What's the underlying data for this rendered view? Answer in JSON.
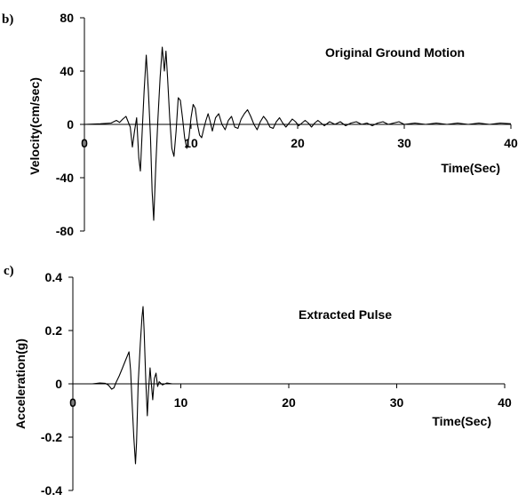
{
  "chart_data": [
    {
      "type": "line",
      "panel_label": "b)",
      "title": "Original Ground Motion",
      "xlabel": "Time(Sec)",
      "ylabel": "Velocity(cm/sec)",
      "xlim": [
        0,
        40
      ],
      "ylim": [
        -80,
        80
      ],
      "x_ticks": [
        "0",
        "10",
        "20",
        "30",
        "40"
      ],
      "y_ticks": [
        "80",
        "40",
        "0",
        "-40",
        "-80"
      ],
      "grid": false,
      "series": [
        {
          "points": [
            [
              0,
              0
            ],
            [
              1.5,
              0.5
            ],
            [
              2.5,
              1
            ],
            [
              3,
              3
            ],
            [
              3.3,
              1.5
            ],
            [
              3.6,
              4
            ],
            [
              3.9,
              6
            ],
            [
              4.1,
              2
            ],
            [
              4.3,
              -2
            ],
            [
              4.5,
              -17
            ],
            [
              4.7,
              -5
            ],
            [
              4.9,
              5
            ],
            [
              5.1,
              -25
            ],
            [
              5.25,
              -35
            ],
            [
              5.45,
              0
            ],
            [
              5.6,
              25
            ],
            [
              5.8,
              52
            ],
            [
              6.0,
              25
            ],
            [
              6.2,
              -10
            ],
            [
              6.35,
              -50
            ],
            [
              6.5,
              -72
            ],
            [
              6.7,
              -30
            ],
            [
              6.9,
              5
            ],
            [
              7.1,
              35
            ],
            [
              7.3,
              58
            ],
            [
              7.5,
              40
            ],
            [
              7.65,
              55
            ],
            [
              7.8,
              35
            ],
            [
              8.0,
              5
            ],
            [
              8.2,
              -18
            ],
            [
              8.4,
              -24
            ],
            [
              8.6,
              -5
            ],
            [
              8.8,
              20
            ],
            [
              9.0,
              18
            ],
            [
              9.2,
              5
            ],
            [
              9.4,
              -10
            ],
            [
              9.6,
              -18
            ],
            [
              9.8,
              -10
            ],
            [
              10.0,
              5
            ],
            [
              10.2,
              15
            ],
            [
              10.4,
              12
            ],
            [
              10.6,
              0
            ],
            [
              10.8,
              -8
            ],
            [
              11.0,
              -10
            ],
            [
              11.2,
              -3
            ],
            [
              11.4,
              3
            ],
            [
              11.6,
              8
            ],
            [
              11.8,
              2
            ],
            [
              12.0,
              -5
            ],
            [
              12.3,
              5
            ],
            [
              12.6,
              8
            ],
            [
              12.9,
              0
            ],
            [
              13.2,
              -4
            ],
            [
              13.5,
              3
            ],
            [
              13.8,
              6
            ],
            [
              14.1,
              -2
            ],
            [
              14.4,
              -3
            ],
            [
              14.7,
              4
            ],
            [
              15.0,
              8
            ],
            [
              15.3,
              11
            ],
            [
              15.6,
              6
            ],
            [
              15.9,
              0
            ],
            [
              16.2,
              -4
            ],
            [
              16.5,
              2
            ],
            [
              16.8,
              6
            ],
            [
              17.1,
              3
            ],
            [
              17.4,
              -2
            ],
            [
              17.7,
              -3
            ],
            [
              18.0,
              2
            ],
            [
              18.3,
              5
            ],
            [
              18.6,
              1
            ],
            [
              18.9,
              -2
            ],
            [
              19.2,
              1
            ],
            [
              19.5,
              4
            ],
            [
              19.8,
              2
            ],
            [
              20.1,
              -1
            ],
            [
              20.4,
              1
            ],
            [
              20.7,
              3
            ],
            [
              21.0,
              1
            ],
            [
              21.3,
              -2
            ],
            [
              21.6,
              1
            ],
            [
              21.9,
              3
            ],
            [
              22.2,
              1
            ],
            [
              22.5,
              -1
            ],
            [
              23.0,
              2
            ],
            [
              23.5,
              0
            ],
            [
              24.0,
              2
            ],
            [
              24.5,
              -1
            ],
            [
              25.0,
              1
            ],
            [
              25.5,
              2
            ],
            [
              26.0,
              0
            ],
            [
              26.5,
              1
            ],
            [
              27.0,
              -1
            ],
            [
              27.5,
              1
            ],
            [
              28.0,
              2
            ],
            [
              28.5,
              0
            ],
            [
              29.0,
              1
            ],
            [
              29.5,
              2
            ],
            [
              30.0,
              0
            ],
            [
              31.0,
              1
            ],
            [
              32.0,
              0
            ],
            [
              33.0,
              1
            ],
            [
              34.0,
              0
            ],
            [
              35.0,
              1
            ],
            [
              36.0,
              0
            ],
            [
              37.0,
              1
            ],
            [
              38.0,
              0
            ],
            [
              39.0,
              1
            ],
            [
              40.0,
              0.5
            ]
          ]
        }
      ]
    },
    {
      "type": "line",
      "panel_label": "c)",
      "title": "Extracted Pulse",
      "xlabel": "Time(Sec)",
      "ylabel": "Acceleration(g)",
      "xlim": [
        0,
        40
      ],
      "ylim": [
        -0.4,
        0.4
      ],
      "x_ticks": [
        "0",
        "10",
        "20",
        "30",
        "40"
      ],
      "y_ticks": [
        "0.4",
        "0.2",
        "0",
        "-0.2",
        "-0.4"
      ],
      "grid": false,
      "series": [
        {
          "points": [
            [
              0,
              0
            ],
            [
              1.8,
              0
            ],
            [
              2.5,
              0.003
            ],
            [
              3.0,
              0.002
            ],
            [
              3.3,
              -0.005
            ],
            [
              3.6,
              -0.02
            ],
            [
              3.8,
              -0.015
            ],
            [
              4.0,
              0.005
            ],
            [
              4.3,
              0.03
            ],
            [
              4.6,
              0.06
            ],
            [
              4.9,
              0.09
            ],
            [
              5.2,
              0.12
            ],
            [
              5.35,
              0.05
            ],
            [
              5.5,
              -0.08
            ],
            [
              5.65,
              -0.2
            ],
            [
              5.8,
              -0.3
            ],
            [
              5.9,
              -0.22
            ],
            [
              6.05,
              0.0
            ],
            [
              6.25,
              0.15
            ],
            [
              6.4,
              0.25
            ],
            [
              6.5,
              0.29
            ],
            [
              6.6,
              0.2
            ],
            [
              6.75,
              0.02
            ],
            [
              6.9,
              -0.12
            ],
            [
              7.0,
              -0.03
            ],
            [
              7.15,
              0.06
            ],
            [
              7.25,
              0.01
            ],
            [
              7.4,
              -0.06
            ],
            [
              7.55,
              0.02
            ],
            [
              7.7,
              0.04
            ],
            [
              7.85,
              -0.01
            ],
            [
              8.0,
              0.008
            ],
            [
              8.3,
              -0.004
            ],
            [
              8.7,
              0.003
            ],
            [
              9.2,
              0
            ],
            [
              40,
              0
            ]
          ]
        }
      ]
    }
  ]
}
